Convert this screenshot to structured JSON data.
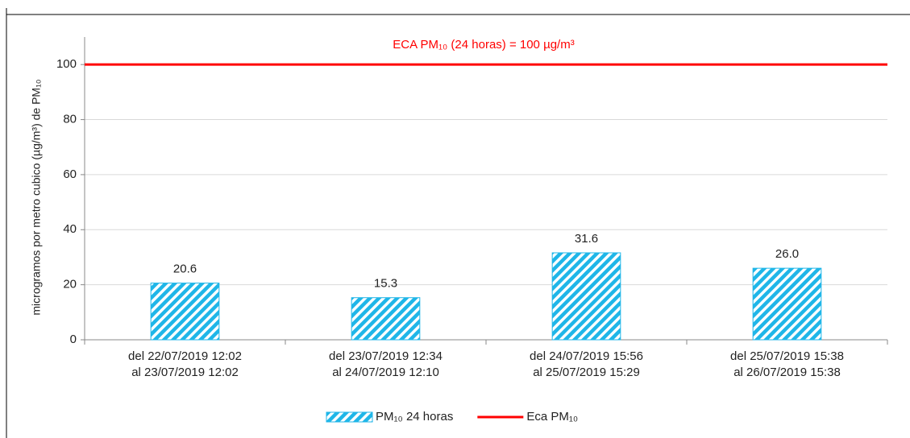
{
  "chart_data": {
    "type": "bar",
    "annotation": "ECA PM₁₀ (24 horas) = 100 µg/m³",
    "y_label": "microgramos por metro cubico (µg/m³) de PM₁₀",
    "categories": [
      [
        "del 22/07/2019 12:02",
        "al 23/07/2019 12:02"
      ],
      [
        "del 23/07/2019 12:34",
        "al 24/07/2019 12:10"
      ],
      [
        "del 24/07/2019 15:56",
        "al 25/07/2019 15:29"
      ],
      [
        "del 25/07/2019 15:38",
        "al 26/07/2019 15:38"
      ]
    ],
    "series": [
      {
        "name": "PM₁₀ 24 horas",
        "color": "#1fb6e8",
        "values": [
          20.6,
          15.3,
          31.6,
          26.0
        ],
        "value_labels": [
          "20.6",
          "15.3",
          "31.6",
          "26.0"
        ]
      },
      {
        "name": "Eca PM₁₀",
        "color": "#ff0000",
        "type": "line",
        "values": [
          100,
          100,
          100,
          100
        ]
      }
    ],
    "ylim": [
      0,
      110
    ],
    "yticks": [
      0,
      20,
      40,
      60,
      80,
      100
    ],
    "grid": true,
    "legend": "bottom"
  }
}
